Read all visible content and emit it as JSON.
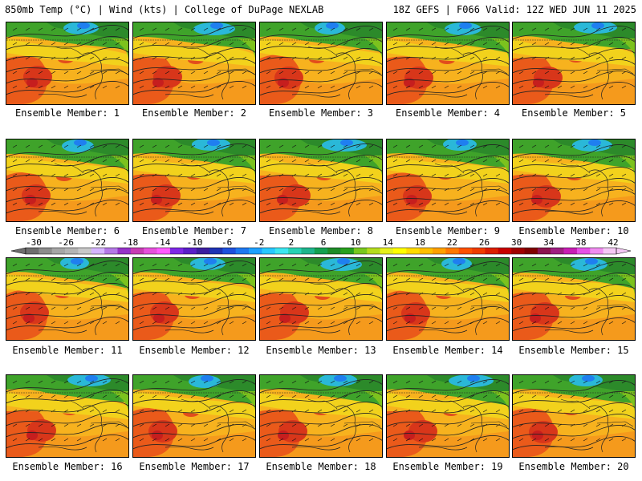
{
  "header": {
    "left": "850mb Temp (°C) | Wind (kts) | College of DuPage NEXLAB",
    "right": "18Z GEFS | F066 Valid: 12Z WED JUN 11 2025"
  },
  "panels": [
    {
      "label": "Ensemble Member: 1"
    },
    {
      "label": "Ensemble Member: 2"
    },
    {
      "label": "Ensemble Member: 3"
    },
    {
      "label": "Ensemble Member: 4"
    },
    {
      "label": "Ensemble Member: 5"
    },
    {
      "label": "Ensemble Member: 6"
    },
    {
      "label": "Ensemble Member: 7"
    },
    {
      "label": "Ensemble Member: 8"
    },
    {
      "label": "Ensemble Member: 9"
    },
    {
      "label": "Ensemble Member: 10"
    },
    {
      "label": "Ensemble Member: 11"
    },
    {
      "label": "Ensemble Member: 12"
    },
    {
      "label": "Ensemble Member: 13"
    },
    {
      "label": "Ensemble Member: 14"
    },
    {
      "label": "Ensemble Member: 15"
    },
    {
      "label": "Ensemble Member: 16"
    },
    {
      "label": "Ensemble Member: 17"
    },
    {
      "label": "Ensemble Member: 18"
    },
    {
      "label": "Ensemble Member: 19"
    },
    {
      "label": "Ensemble Member: 20"
    }
  ],
  "colorbar": {
    "labels": [
      "-30",
      "-26",
      "-22",
      "-18",
      "-14",
      "-10",
      "-6",
      "-2",
      "2",
      "6",
      "10",
      "14",
      "18",
      "22",
      "26",
      "30",
      "34",
      "38",
      "42"
    ],
    "colors": [
      "#6e6e6e",
      "#8c8c8c",
      "#a6a6a6",
      "#b4b4b4",
      "#c8c8c8",
      "#d6b4ff",
      "#b478e6",
      "#9632c8",
      "#c83cb4",
      "#e650dc",
      "#ff5aff",
      "#7e28e6",
      "#5a1ec8",
      "#3c1ea0",
      "#1e32b4",
      "#1e50dc",
      "#1e78f0",
      "#1ea0ff",
      "#28c8ff",
      "#3ce6f0",
      "#28d2b4",
      "#1eb48c",
      "#14a050",
      "#1e8c28",
      "#28a01e",
      "#78c81e",
      "#b4dc1e",
      "#e6f01e",
      "#ffff00",
      "#ffdc00",
      "#ffbe00",
      "#ffa000",
      "#ff7800",
      "#ff5000",
      "#f03c00",
      "#dc1e00",
      "#c80000",
      "#a00000",
      "#800000",
      "#8c1450",
      "#a01e82",
      "#c81eb4",
      "#e650e6",
      "#f08cf0",
      "#f5c8f5"
    ]
  }
}
